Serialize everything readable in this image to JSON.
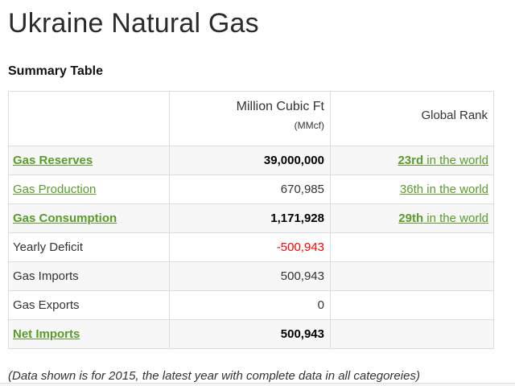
{
  "page": {
    "title": "Ukraine Natural Gas",
    "section_heading": "Summary Table",
    "footnote": "(Data shown is for 2015, the latest year with complete data in all categoreies)"
  },
  "colors": {
    "link_green": "#5b9b2e",
    "negative_red": "#ff0000",
    "row_stripe": "#f7f7f7",
    "table_border": "#dddddd"
  },
  "table": {
    "headers": {
      "label": "",
      "value_line1": "Million Cubic Ft",
      "value_line2": "(MMcf)",
      "rank": "Global Rank"
    },
    "rows": [
      {
        "label": "Gas Reserves",
        "value": "39,000,000",
        "rank_ordinal": "23rd",
        "rank_rest": " in the world"
      },
      {
        "label": "Gas Production",
        "value": "670,985",
        "rank_ordinal": "36th",
        "rank_rest": " in the world"
      },
      {
        "label": "Gas Consumption",
        "value": "1,171,928",
        "rank_ordinal": "29th",
        "rank_rest": " in the world"
      },
      {
        "label": "Yearly Deficit",
        "value": "-500,943"
      },
      {
        "label": "Gas Imports",
        "value": "500,943"
      },
      {
        "label": "Gas Exports",
        "value": "0"
      },
      {
        "label": "Net Imports",
        "value": "500,943"
      }
    ]
  }
}
